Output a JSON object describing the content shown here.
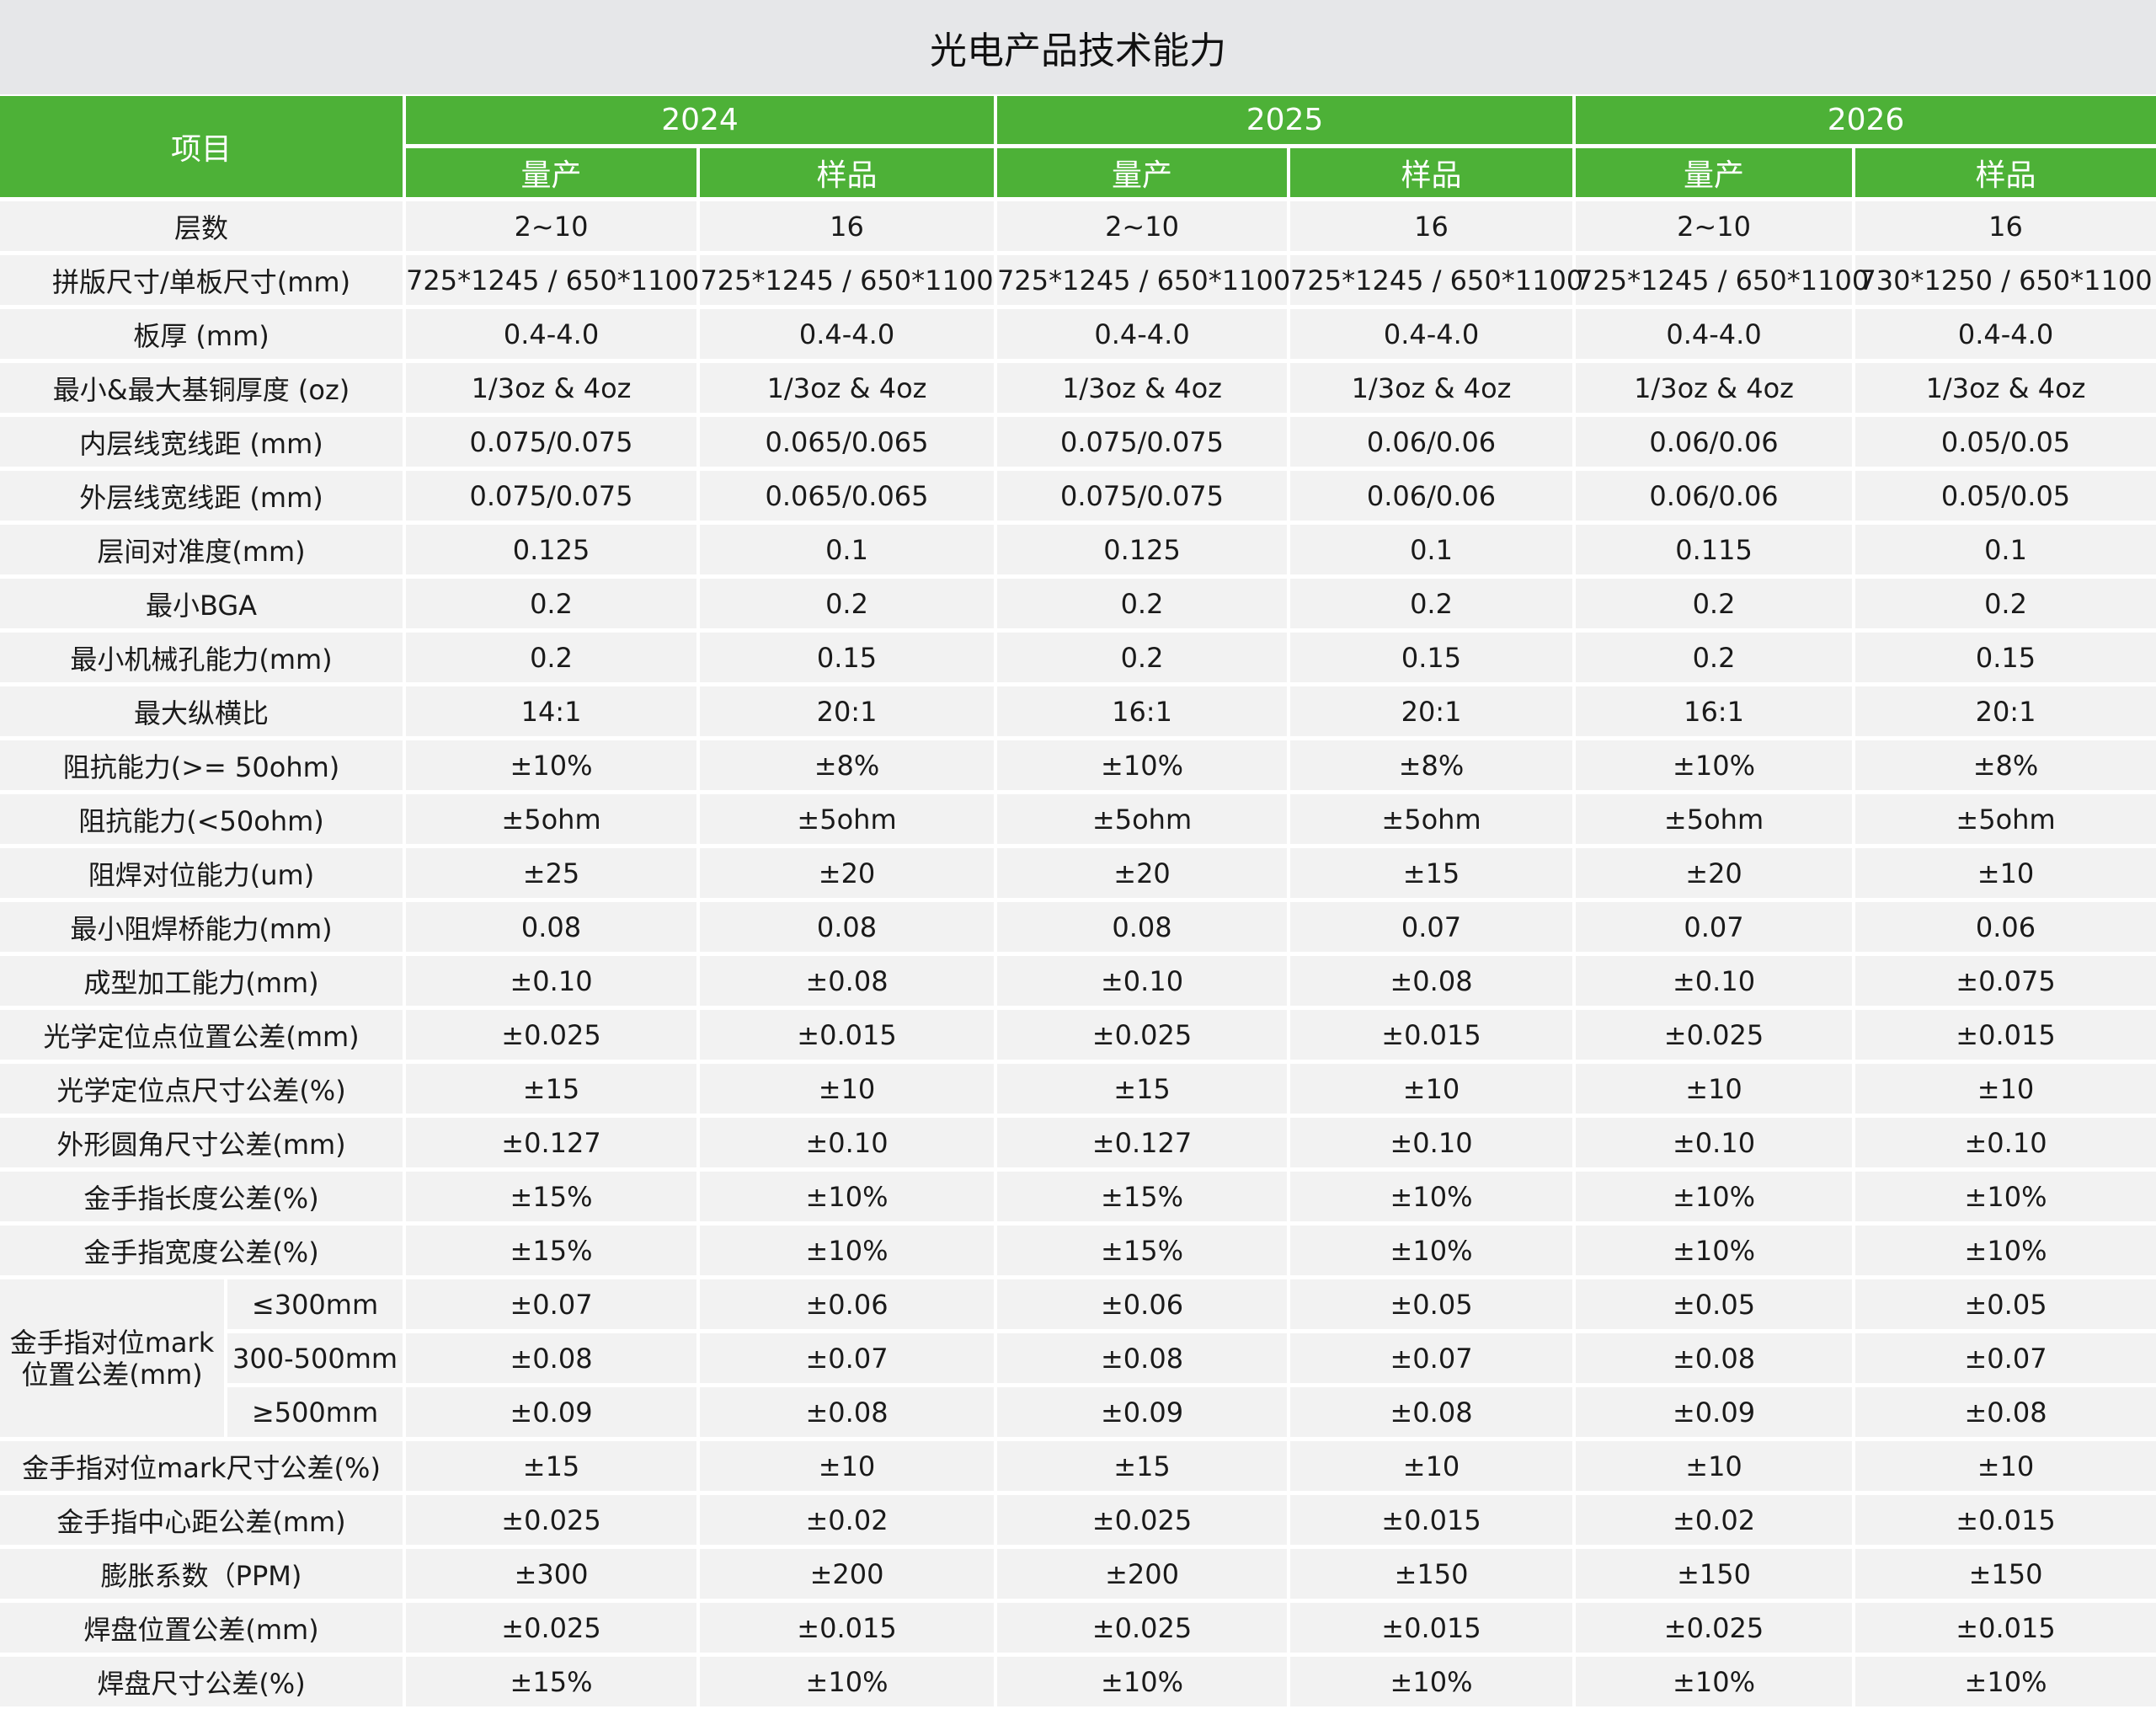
{
  "title": "光电产品技术能力",
  "header": {
    "item": "项目",
    "years": [
      "2024",
      "2025",
      "2026"
    ],
    "sub": [
      "量产",
      "样品"
    ]
  },
  "rows": [
    {
      "label": "层数",
      "values": [
        "2~10",
        "16",
        "2~10",
        "16",
        "2~10",
        "16"
      ]
    },
    {
      "label": "拼版尺寸/单板尺寸(mm)",
      "values": [
        "725*1245 / 650*1100",
        "725*1245 / 650*1100",
        "725*1245 / 650*1100",
        "725*1245 / 650*1100",
        "725*1245 / 650*1100",
        "730*1250 / 650*1100"
      ]
    },
    {
      "label": "板厚 (mm)",
      "values": [
        "0.4-4.0",
        "0.4-4.0",
        "0.4-4.0",
        "0.4-4.0",
        "0.4-4.0",
        "0.4-4.0"
      ]
    },
    {
      "label": "最小&最大基铜厚度 (oz)",
      "values": [
        "1/3oz & 4oz",
        "1/3oz & 4oz",
        "1/3oz & 4oz",
        "1/3oz & 4oz",
        "1/3oz & 4oz",
        "1/3oz & 4oz"
      ]
    },
    {
      "label": "内层线宽线距 (mm)",
      "values": [
        "0.075/0.075",
        "0.065/0.065",
        "0.075/0.075",
        "0.06/0.06",
        "0.06/0.06",
        "0.05/0.05"
      ]
    },
    {
      "label": "外层线宽线距 (mm)",
      "values": [
        "0.075/0.075",
        "0.065/0.065",
        "0.075/0.075",
        "0.06/0.06",
        "0.06/0.06",
        "0.05/0.05"
      ]
    },
    {
      "label": "层间对准度(mm)",
      "values": [
        "0.125",
        "0.1",
        "0.125",
        "0.1",
        "0.115",
        "0.1"
      ]
    },
    {
      "label": "最小BGA",
      "values": [
        "0.2",
        "0.2",
        "0.2",
        "0.2",
        "0.2",
        "0.2"
      ]
    },
    {
      "label": "最小机械孔能力(mm)",
      "values": [
        "0.2",
        "0.15",
        "0.2",
        "0.15",
        "0.2",
        "0.15"
      ]
    },
    {
      "label": "最大纵横比",
      "values": [
        "14:1",
        "20:1",
        "16:1",
        "20:1",
        "16:1",
        "20:1"
      ]
    },
    {
      "label": "阻抗能力(>= 50ohm)",
      "values": [
        "±10%",
        "±8%",
        "±10%",
        "±8%",
        "±10%",
        "±8%"
      ]
    },
    {
      "label": "阻抗能力(<50ohm)",
      "values": [
        "±5ohm",
        "±5ohm",
        "±5ohm",
        "±5ohm",
        "±5ohm",
        "±5ohm"
      ]
    },
    {
      "label": "阻焊对位能力(um)",
      "values": [
        "±25",
        "±20",
        "±20",
        "±15",
        "±20",
        "±10"
      ]
    },
    {
      "label": "最小阻焊桥能力(mm)",
      "values": [
        "0.08",
        "0.08",
        "0.08",
        "0.07",
        "0.07",
        "0.06"
      ]
    },
    {
      "label": "成型加工能力(mm)",
      "values": [
        "±0.10",
        "±0.08",
        "±0.10",
        "±0.08",
        "±0.10",
        "±0.075"
      ]
    },
    {
      "label": "光学定位点位置公差(mm)",
      "values": [
        "±0.025",
        "±0.015",
        "±0.025",
        "±0.015",
        "±0.025",
        "±0.015"
      ]
    },
    {
      "label": "光学定位点尺寸公差(%)",
      "values": [
        "±15",
        "±10",
        "±15",
        "±10",
        "±10",
        "±10"
      ]
    },
    {
      "label": "外形圆角尺寸公差(mm)",
      "values": [
        "±0.127",
        "±0.10",
        "±0.127",
        "±0.10",
        "±0.10",
        "±0.10"
      ]
    },
    {
      "label": "金手指长度公差(%)",
      "values": [
        "±15%",
        "±10%",
        "±15%",
        "±10%",
        "±10%",
        "±10%"
      ]
    },
    {
      "label": "金手指宽度公差(%)",
      "values": [
        "±15%",
        "±10%",
        "±15%",
        "±10%",
        "±10%",
        "±10%"
      ]
    },
    {
      "group": "金手指对位mark位置公差(mm)",
      "label": "≤300mm",
      "values": [
        "±0.07",
        "±0.06",
        "±0.06",
        "±0.05",
        "±0.05",
        "±0.05"
      ]
    },
    {
      "group": "金手指对位mark位置公差(mm)",
      "label": "300-500mm",
      "values": [
        "±0.08",
        "±0.07",
        "±0.08",
        "±0.07",
        "±0.08",
        "±0.07"
      ]
    },
    {
      "group": "金手指对位mark位置公差(mm)",
      "label": "≥500mm",
      "values": [
        "±0.09",
        "±0.08",
        "±0.09",
        "±0.08",
        "±0.09",
        "±0.08"
      ]
    },
    {
      "label": "金手指对位mark尺寸公差(%)",
      "values": [
        "±15",
        "±10",
        "±15",
        "±10",
        "±10",
        "±10"
      ]
    },
    {
      "label": "金手指中心距公差(mm)",
      "values": [
        "±0.025",
        "±0.02",
        "±0.025",
        "±0.015",
        "±0.02",
        "±0.015"
      ]
    },
    {
      "label": "膨胀系数（PPM)",
      "values": [
        "±300",
        "±200",
        "±200",
        "±150",
        "±150",
        "±150"
      ]
    },
    {
      "label": "焊盘位置公差(mm)",
      "values": [
        "±0.025",
        "±0.015",
        "±0.025",
        "±0.015",
        "±0.025",
        "±0.015"
      ]
    },
    {
      "label": "焊盘尺寸公差(%)",
      "values": [
        "±15%",
        "±10%",
        "±10%",
        "±10%",
        "±10%",
        "±10%"
      ]
    }
  ],
  "colors": {
    "header_green": "#4db137",
    "row_bg": "#f2f2f2",
    "title_bg": "#e6e7e9"
  }
}
